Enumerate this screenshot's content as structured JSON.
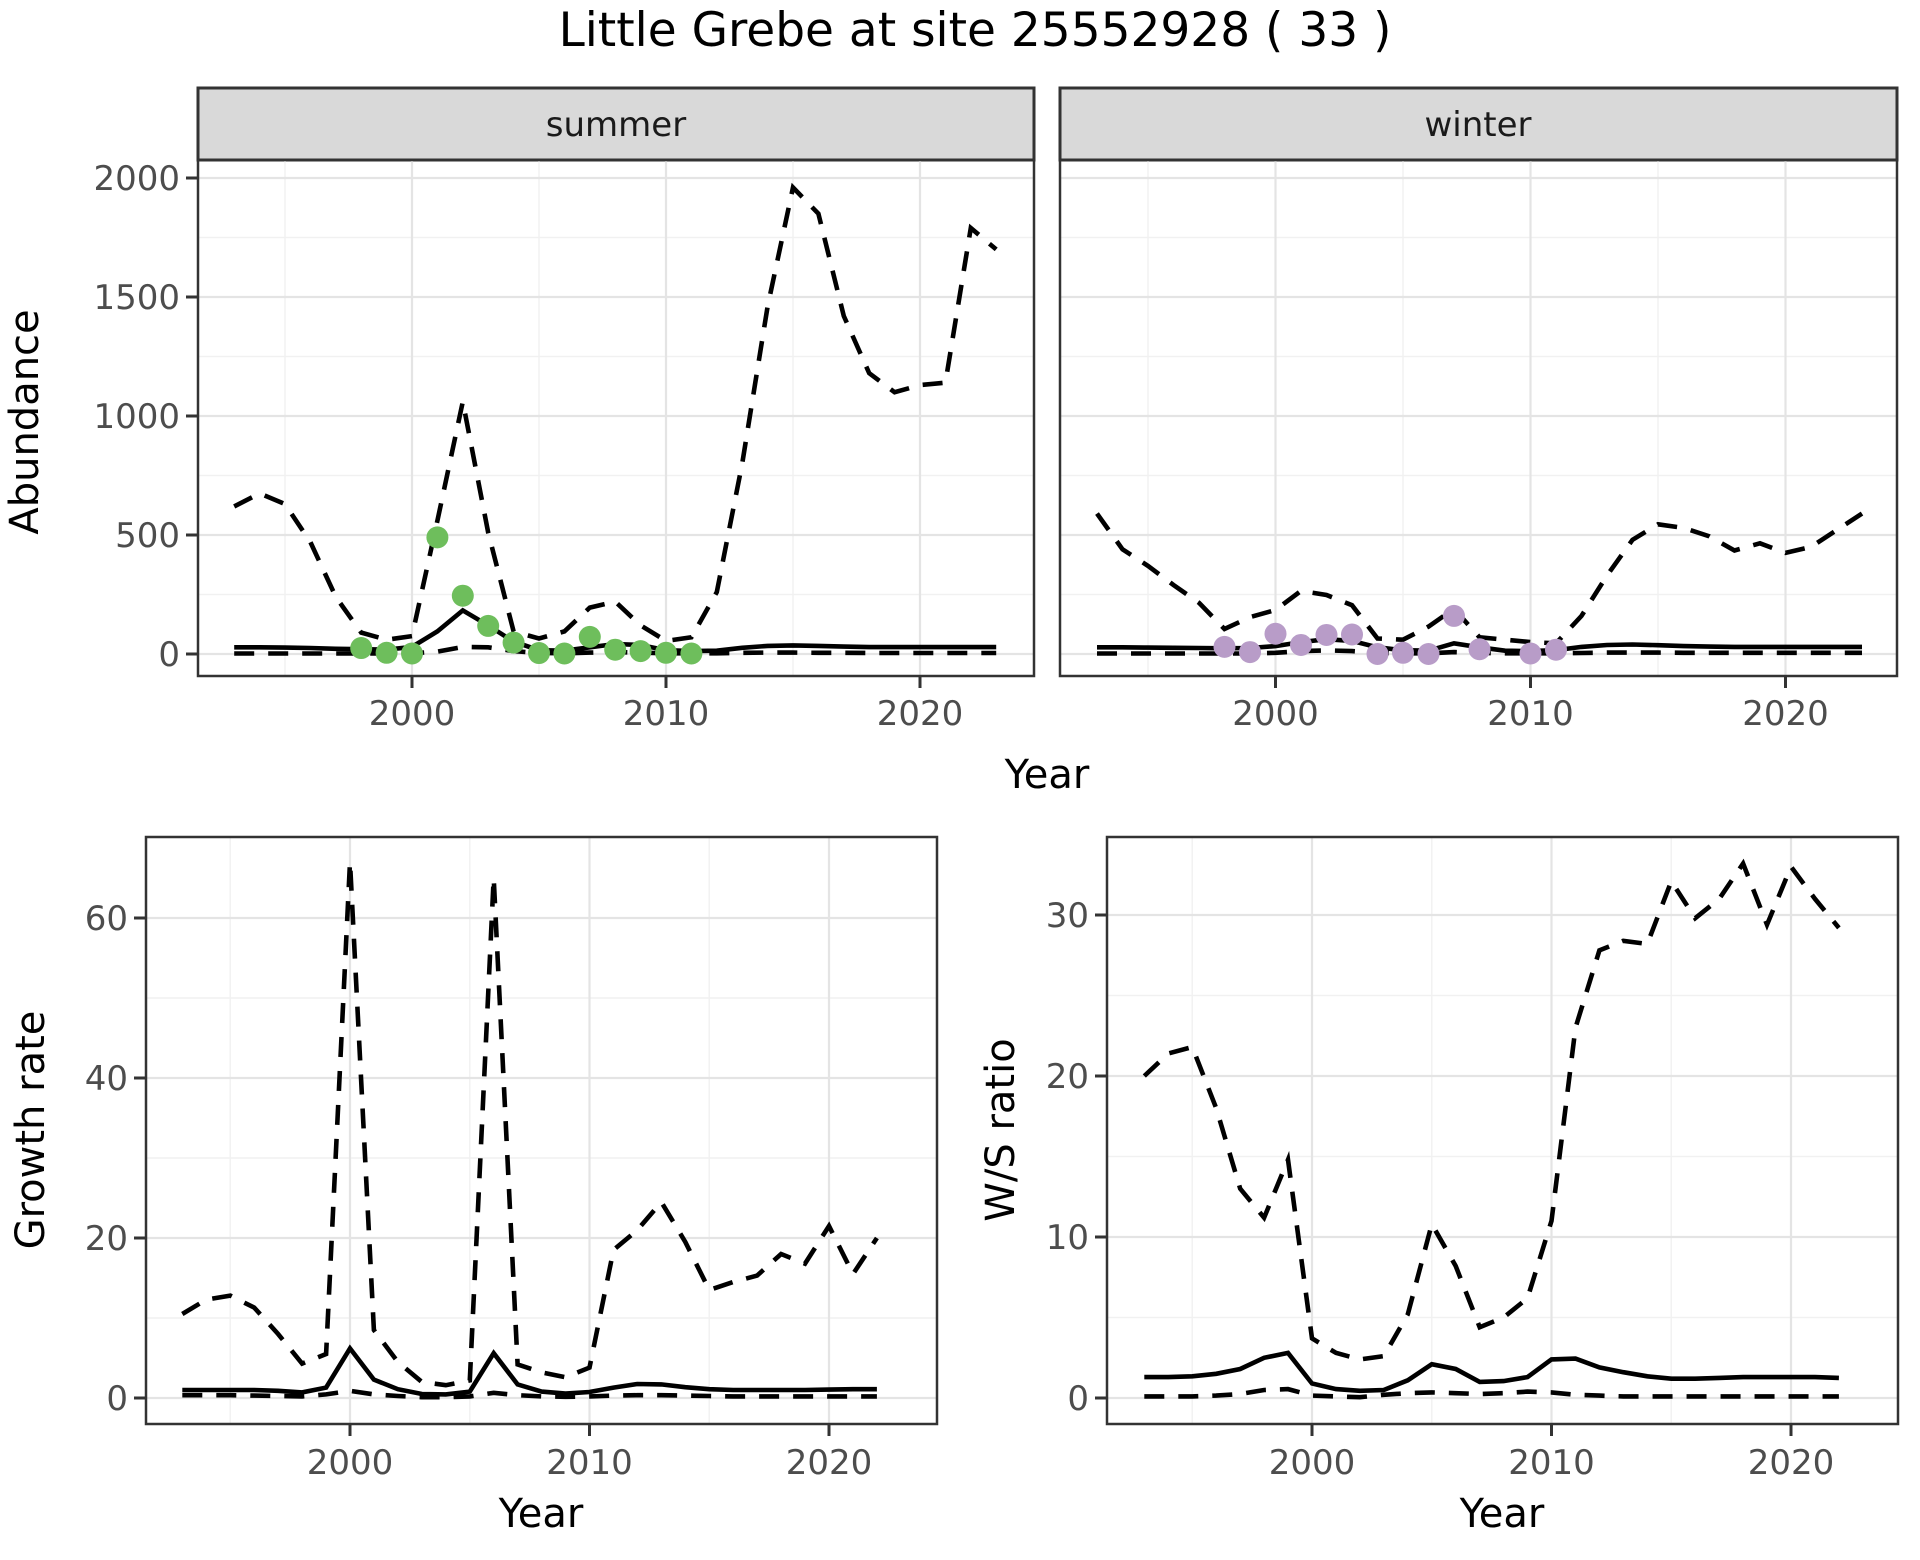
{
  "title": "Little Grebe at site 25552928 ( 33 )",
  "colors": {
    "summer_points": "#6EBE5C",
    "winter_points": "#B89CC8",
    "strip_fill": "#D9D9D9",
    "grid_major": "#E4E4E4",
    "grid_minor": "#F1F1F1",
    "axis_text": "#4D4D4D",
    "line": "#000000"
  },
  "chart_data": [
    {
      "id": "abundance_summer",
      "type": "line",
      "facet_label": "summer",
      "xlabel": "Year",
      "ylabel": "Abundance",
      "x_ticks": [
        2000,
        2010,
        2020
      ],
      "x_minor": [
        1995,
        2005,
        2015
      ],
      "y_ticks": [
        0,
        500,
        1000,
        1500,
        2000
      ],
      "y_minor": [
        250,
        750,
        1250,
        1750
      ],
      "xlim": [
        1991.6,
        2024.3
      ],
      "ylim": [
        -95,
        2075
      ],
      "x": [
        1993,
        1994,
        1995,
        1996,
        1997,
        1998,
        1999,
        2000,
        2001,
        2002,
        2003,
        2004,
        2005,
        2006,
        2007,
        2008,
        2009,
        2010,
        2011,
        2012,
        2013,
        2014,
        2015,
        2016,
        2017,
        2018,
        2019,
        2020,
        2021,
        2022,
        2023
      ],
      "series": [
        {
          "name": "upper_ci",
          "style": "dashed",
          "values": [
            620,
            675,
            630,
            470,
            240,
            90,
            60,
            75,
            560,
            1060,
            510,
            95,
            65,
            95,
            195,
            220,
            120,
            55,
            70,
            260,
            800,
            1460,
            1960,
            1850,
            1420,
            1180,
            1100,
            1130,
            1140,
            1790,
            1700
          ]
        },
        {
          "name": "mean",
          "style": "solid",
          "values": [
            28,
            28,
            27,
            25,
            22,
            20,
            18,
            30,
            95,
            183,
            120,
            52,
            16,
            14,
            28,
            42,
            38,
            16,
            12,
            14,
            26,
            34,
            36,
            34,
            31,
            29,
            29,
            29,
            29,
            29,
            29
          ]
        },
        {
          "name": "lower_ci",
          "style": "dashed",
          "values": [
            2,
            2,
            2,
            2,
            2,
            2,
            2,
            3,
            10,
            30,
            28,
            12,
            4,
            3,
            6,
            8,
            6,
            3,
            3,
            3,
            5,
            6,
            6,
            5,
            5,
            4,
            4,
            4,
            4,
            4,
            4
          ]
        }
      ],
      "points": {
        "name": "observed_counts",
        "color": "#6EBE5C",
        "x": [
          1998,
          1999,
          2000,
          2001,
          2002,
          2003,
          2004,
          2005,
          2006,
          2007,
          2008,
          2009,
          2010,
          2011
        ],
        "y": [
          25,
          5,
          2,
          490,
          245,
          118,
          48,
          4,
          2,
          72,
          18,
          12,
          5,
          2
        ]
      }
    },
    {
      "id": "abundance_winter",
      "type": "line",
      "facet_label": "winter",
      "xlabel": "Year",
      "ylabel": "Abundance",
      "x_ticks": [
        2000,
        2010,
        2020
      ],
      "x_minor": [
        1995,
        2005,
        2015
      ],
      "y_ticks": [
        0,
        500,
        1000,
        1500,
        2000
      ],
      "y_minor": [
        250,
        750,
        1250,
        1750
      ],
      "xlim": [
        1991.6,
        2024.3
      ],
      "ylim": [
        -95,
        2075
      ],
      "x": [
        1993,
        1994,
        1995,
        1996,
        1997,
        1998,
        1999,
        2000,
        2001,
        2002,
        2003,
        2004,
        2005,
        2006,
        2007,
        2008,
        2009,
        2010,
        2011,
        2012,
        2013,
        2014,
        2015,
        2016,
        2017,
        2018,
        2019,
        2020,
        2021,
        2022,
        2023
      ],
      "series": [
        {
          "name": "upper_ci",
          "style": "dashed",
          "values": [
            590,
            440,
            370,
            290,
            215,
            105,
            155,
            185,
            265,
            248,
            205,
            65,
            60,
            115,
            190,
            70,
            60,
            50,
            45,
            160,
            330,
            480,
            545,
            530,
            495,
            435,
            465,
            425,
            450,
            520,
            590
          ]
        },
        {
          "name": "mean",
          "style": "solid",
          "values": [
            28,
            28,
            27,
            26,
            25,
            24,
            25,
            33,
            50,
            62,
            55,
            28,
            16,
            14,
            45,
            28,
            14,
            12,
            16,
            30,
            38,
            40,
            37,
            33,
            31,
            30,
            30,
            30,
            30,
            30,
            30
          ]
        },
        {
          "name": "lower_ci",
          "style": "dashed",
          "values": [
            2,
            2,
            2,
            2,
            2,
            2,
            2,
            5,
            12,
            15,
            12,
            4,
            3,
            3,
            8,
            4,
            3,
            3,
            3,
            4,
            6,
            6,
            6,
            5,
            5,
            5,
            5,
            5,
            5,
            5,
            5
          ]
        }
      ],
      "points": {
        "name": "observed_counts",
        "color": "#B89CC8",
        "x": [
          1998,
          1999,
          2000,
          2001,
          2002,
          2003,
          2004,
          2005,
          2006,
          2007,
          2008,
          2010,
          2011
        ],
        "y": [
          30,
          8,
          85,
          38,
          80,
          82,
          0,
          5,
          0,
          160,
          20,
          2,
          18
        ]
      }
    },
    {
      "id": "growth_rate",
      "type": "line",
      "facet_label": "",
      "xlabel": "Year",
      "ylabel": "Growth rate",
      "x_ticks": [
        2000,
        2010,
        2020
      ],
      "x_minor": [
        1995,
        2005,
        2015
      ],
      "y_ticks": [
        0,
        20,
        40,
        60
      ],
      "y_minor": [
        10,
        30,
        50
      ],
      "xlim": [
        1991.5,
        2024.5
      ],
      "ylim": [
        -3.2,
        70.1
      ],
      "x": [
        1993,
        1994,
        1995,
        1996,
        1997,
        1998,
        1999,
        2000,
        2001,
        2002,
        2003,
        2004,
        2005,
        2006,
        2007,
        2008,
        2009,
        2010,
        2011,
        2012,
        2013,
        2014,
        2015,
        2016,
        2017,
        2018,
        2019,
        2020,
        2021,
        2022
      ],
      "series": [
        {
          "name": "upper_ci",
          "style": "dashed",
          "values": [
            10.5,
            12.3,
            12.8,
            11.3,
            8,
            4.3,
            5.5,
            67,
            8.5,
            4.5,
            2,
            1.6,
            2.2,
            65,
            4.2,
            3.2,
            2.6,
            3.8,
            18.5,
            21,
            24.5,
            19.5,
            13.5,
            14.5,
            15.3,
            18,
            16.8,
            21.5,
            15.5,
            20
          ]
        },
        {
          "name": "mean",
          "style": "solid",
          "values": [
            1,
            1,
            1,
            1,
            0.9,
            0.7,
            1.3,
            6.2,
            2.3,
            1.1,
            0.5,
            0.45,
            0.8,
            5.6,
            1.7,
            0.8,
            0.55,
            0.75,
            1.3,
            1.75,
            1.7,
            1.35,
            1.1,
            1,
            1,
            1,
            1,
            1.05,
            1.1,
            1.1
          ]
        },
        {
          "name": "lower_ci",
          "style": "dashed",
          "values": [
            0.35,
            0.35,
            0.35,
            0.3,
            0.25,
            0.2,
            0.45,
            0.9,
            0.45,
            0.25,
            0.1,
            0.1,
            0.2,
            0.65,
            0.35,
            0.2,
            0.15,
            0.2,
            0.3,
            0.35,
            0.35,
            0.3,
            0.25,
            0.2,
            0.2,
            0.2,
            0.2,
            0.2,
            0.2,
            0.2
          ]
        }
      ]
    },
    {
      "id": "ws_ratio",
      "type": "line",
      "facet_label": "",
      "xlabel": "Year",
      "ylabel": "W/S ratio",
      "x_ticks": [
        2000,
        2010,
        2020
      ],
      "x_minor": [
        1995,
        2005,
        2015
      ],
      "y_ticks": [
        0,
        10,
        20,
        30
      ],
      "y_minor": [
        5,
        15,
        25
      ],
      "xlim": [
        1991.5,
        2024.5
      ],
      "ylim": [
        -1.6,
        34.8
      ],
      "x": [
        1993,
        1994,
        1995,
        1996,
        1997,
        1998,
        1999,
        2000,
        2001,
        2002,
        2003,
        2004,
        2005,
        2006,
        2007,
        2008,
        2009,
        2010,
        2011,
        2012,
        2013,
        2014,
        2015,
        2016,
        2017,
        2018,
        2019,
        2020,
        2021,
        2022
      ],
      "series": [
        {
          "name": "upper_ci",
          "style": "dashed",
          "values": [
            20,
            21.4,
            21.8,
            18,
            13,
            11.2,
            14.8,
            3.7,
            2.8,
            2.4,
            2.6,
            5.2,
            10.8,
            8.2,
            4.4,
            5,
            6.2,
            11,
            23,
            27.8,
            28.4,
            28.2,
            32.1,
            29.8,
            31,
            33.2,
            29.4,
            33,
            31,
            29.2
          ]
        },
        {
          "name": "mean",
          "style": "solid",
          "values": [
            1.3,
            1.3,
            1.35,
            1.5,
            1.8,
            2.5,
            2.8,
            0.9,
            0.55,
            0.45,
            0.5,
            1.1,
            2.1,
            1.8,
            1,
            1.05,
            1.3,
            2.4,
            2.45,
            1.9,
            1.6,
            1.35,
            1.2,
            1.2,
            1.25,
            1.3,
            1.3,
            1.3,
            1.3,
            1.25
          ]
        },
        {
          "name": "lower_ci",
          "style": "dashed",
          "values": [
            0.1,
            0.1,
            0.1,
            0.15,
            0.25,
            0.5,
            0.55,
            0.15,
            0.1,
            0.05,
            0.2,
            0.3,
            0.35,
            0.3,
            0.25,
            0.3,
            0.4,
            0.35,
            0.2,
            0.15,
            0.1,
            0.1,
            0.1,
            0.1,
            0.1,
            0.1,
            0.1,
            0.1,
            0.1,
            0.1
          ]
        }
      ]
    }
  ]
}
